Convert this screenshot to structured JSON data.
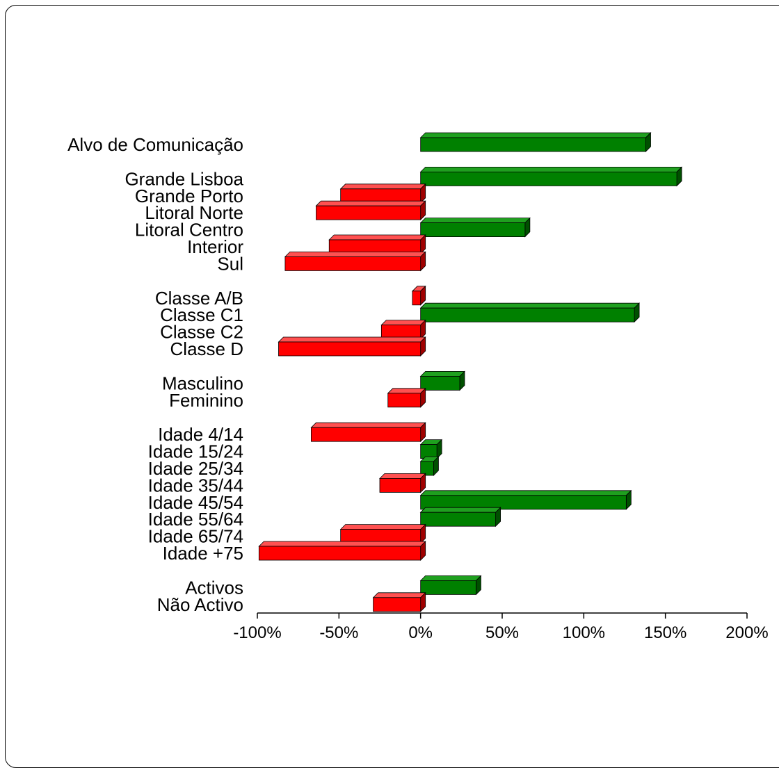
{
  "chart_data": {
    "type": "bar",
    "orientation": "horizontal",
    "title": "",
    "xlabel": "",
    "ylabel": "",
    "xlim": [
      -100,
      200
    ],
    "x_ticks": [
      "-100%",
      "-50%",
      "0%",
      "50%",
      "100%",
      "150%",
      "200%"
    ],
    "x_tick_values": [
      -100,
      -50,
      0,
      50,
      100,
      150,
      200
    ],
    "grid": false,
    "legend": "none",
    "colors": {
      "positive": "#008000",
      "negative": "#ff0000"
    },
    "groups": [
      {
        "categories": [
          "Alvo de Comunicação"
        ],
        "values": [
          138
        ]
      },
      {
        "categories": [
          "Grande Lisboa",
          "Grande Porto",
          "Litoral Norte",
          "Litoral Centro",
          "Interior",
          "Sul"
        ],
        "values": [
          157,
          -49,
          -64,
          64,
          -56,
          -83
        ]
      },
      {
        "categories": [
          "Classe A/B",
          "Classe C1",
          "Classe C2",
          "Classe D"
        ],
        "values": [
          -5,
          131,
          -24,
          -87
        ]
      },
      {
        "categories": [
          "Masculino",
          "Feminino"
        ],
        "values": [
          24,
          -20
        ]
      },
      {
        "categories": [
          "Idade 4/14",
          "Idade 15/24",
          "Idade 25/34",
          "Idade 35/44",
          "Idade 45/54",
          "Idade 55/64",
          "Idade 65/74",
          "Idade +75"
        ],
        "values": [
          -67,
          10,
          8,
          -25,
          126,
          46,
          -49,
          -99
        ]
      },
      {
        "categories": [
          "Activos",
          "Não Activo"
        ],
        "values": [
          34,
          -29
        ]
      }
    ]
  }
}
